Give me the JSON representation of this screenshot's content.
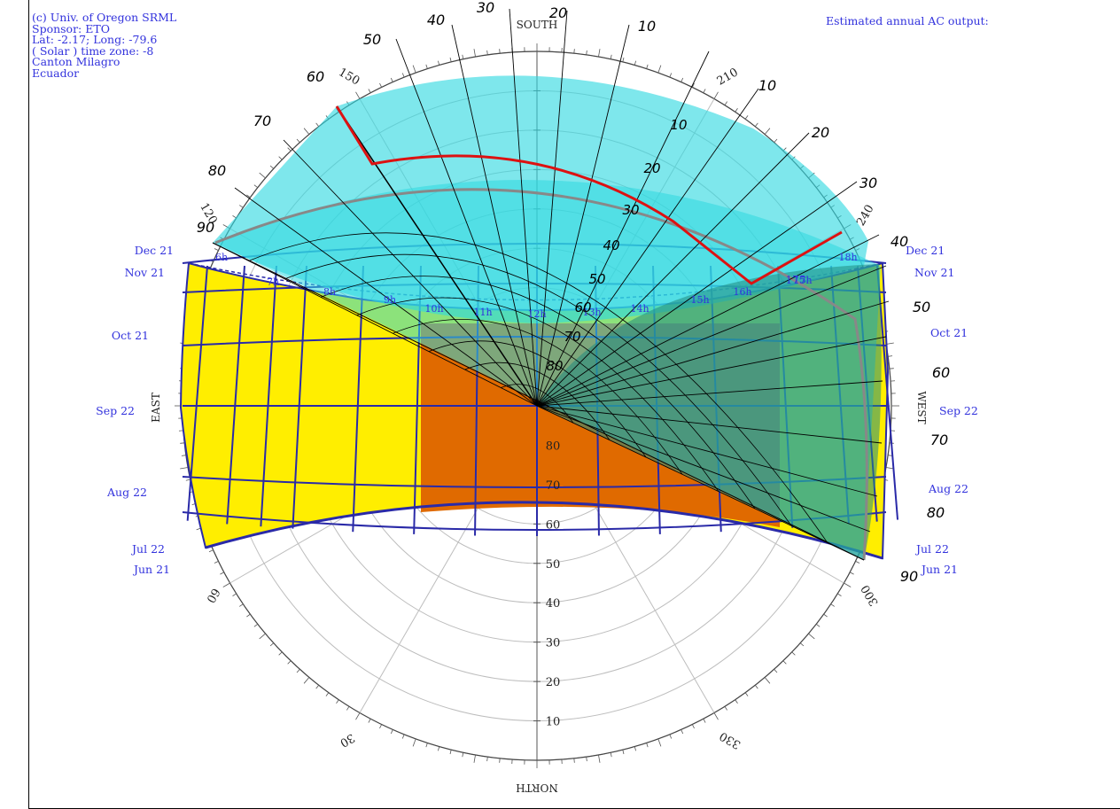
{
  "info": {
    "lines": [
      "(c) Univ. of Oregon SRML",
      "Sponsor: ETO",
      "Lat: -2.17; Long: -79.6",
      "( Solar ) time zone: -8",
      "Canton Milagro",
      "Ecuador"
    ]
  },
  "estimate_label": "Estimated annual AC output:",
  "directions": {
    "south": "SOUTH",
    "north": "NORTH",
    "east": "EAST",
    "west": "WEST"
  },
  "azimuth_labels": [
    "30",
    "60",
    "120",
    "150",
    "210",
    "240",
    "300",
    "330"
  ],
  "altitude_labels": [
    "10",
    "20",
    "30",
    "40",
    "50",
    "60",
    "70",
    "80"
  ],
  "month_labels_left": [
    "Dec 21",
    "Nov 21",
    "Oct 21",
    "Sep 22",
    "Aug 22",
    "Jul 22",
    "Jun 21"
  ],
  "month_labels_right": [
    "Dec 21",
    "Nov 21",
    "Oct 21",
    "Sep 22",
    "Aug 22",
    "Jul 22",
    "Jun 21"
  ],
  "hour_labels": [
    "6h",
    "7h",
    "8h",
    "9h",
    "10h",
    "11h",
    "12h",
    "13h",
    "14h",
    "15h",
    "16h",
    "17h",
    "18h"
  ],
  "tilt_fan_left_ticks": [
    "90",
    "80",
    "70",
    "60",
    "50",
    "40",
    "30",
    "20",
    "10"
  ],
  "tilt_fan_right_ticks": [
    "10",
    "20",
    "30",
    "40",
    "50",
    "60",
    "70",
    "80",
    "90"
  ],
  "tilt_fan_inner_ticks": [
    "10",
    "20",
    "30",
    "40",
    "50",
    "60",
    "70",
    "80"
  ],
  "fan_azimuth_label": "175",
  "colors": {
    "sun_path_year": "#ffee00",
    "sun_path_summer": "#e06a00",
    "shade_cyan": "#2ed8e0",
    "shade_teal": "#208a80",
    "grid_blue": "#2a2aa8",
    "horizon_red": "#dd1111",
    "label_blue": "#3333dd"
  }
}
